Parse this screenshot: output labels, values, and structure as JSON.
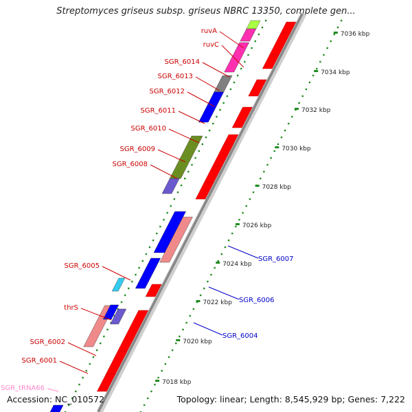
{
  "header": {
    "title": "Streptomyces griseus subsp. griseus NBRC 13350, complete gen..."
  },
  "footer": {
    "accession": "Accession: NC_010572",
    "summary": "Topology: linear; Length: 8,545,929 bp; Genes: 7,222"
  },
  "scale_labels": [
    "7036 kbp",
    "7034 kbp",
    "7032 kbp",
    "7030 kbp",
    "7028 kbp",
    "7026 kbp",
    "7024 kbp",
    "7022 kbp",
    "7020 kbp",
    "7018 kbp"
  ],
  "genes_left": [
    {
      "label": "ruvA",
      "color": "#cc0000"
    },
    {
      "label": "ruvC",
      "color": "#cc0000"
    },
    {
      "label": "SGR_6014",
      "color": "#cc0000"
    },
    {
      "label": "SGR_6013",
      "color": "#cc0000"
    },
    {
      "label": "SGR_6012",
      "color": "#cc0000"
    },
    {
      "label": "SGR_6011",
      "color": "#cc0000"
    },
    {
      "label": "SGR_6010",
      "color": "#cc0000"
    },
    {
      "label": "SGR_6009",
      "color": "#cc0000"
    },
    {
      "label": "SGR_6008",
      "color": "#cc0000"
    },
    {
      "label": "SGR_6005",
      "color": "#cc0000"
    },
    {
      "label": "thrS",
      "color": "#cc0000"
    },
    {
      "label": "SGR_6002",
      "color": "#cc0000"
    },
    {
      "label": "SGR_6001",
      "color": "#cc0000"
    },
    {
      "label": "SGR_tRNA66",
      "color": "#ff88cc"
    }
  ],
  "genes_right": [
    {
      "label": "SGR_6007",
      "color": "#0000cc"
    },
    {
      "label": "SGR_6006",
      "color": "#0000cc"
    },
    {
      "label": "SGR_6004",
      "color": "#0000cc"
    }
  ],
  "colors": {
    "cds_red": "#ff0000",
    "cds_blue": "#0000ff",
    "pink": "#ff2fb0",
    "salmon": "#f08a8a",
    "olive": "#6b8e23",
    "gray": "#808080",
    "slate": "#6a5acd",
    "cyan": "#33ccee",
    "lime": "#aaff44",
    "tick_green": "#228b22",
    "backbone": "#888888"
  }
}
